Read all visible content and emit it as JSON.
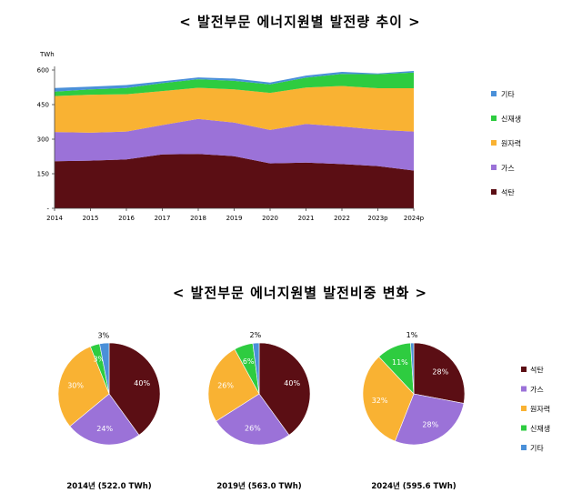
{
  "area_title": "< 발전부문 에너지원별 발전량 추이 >",
  "pie_title": "< 발전부문 에너지원별 발전비중 변화 >",
  "chart_data": [
    {
      "type": "area",
      "stacked": true,
      "title": "< 발전부문 에너지원별 발전량 추이 >",
      "unit": "TWh",
      "x": [
        "2014",
        "2015",
        "2016",
        "2017",
        "2018",
        "2019",
        "2020",
        "2021",
        "2022",
        "2023p",
        "2024p"
      ],
      "yticks": [
        "-",
        "150",
        "300",
        "450",
        "600"
      ],
      "ylim": [
        0,
        600
      ],
      "series": [
        {
          "name": "석탄",
          "color": "#5B0E14",
          "values": [
            204,
            207,
            212,
            234,
            236,
            226,
            195,
            198,
            192,
            183,
            164
          ]
        },
        {
          "name": "가스",
          "color": "#9B72D8",
          "values": [
            127,
            121,
            121,
            127,
            152,
            146,
            145,
            168,
            163,
            158,
            169
          ]
        },
        {
          "name": "원자력",
          "color": "#F9B233",
          "values": [
            156,
            165,
            162,
            148,
            135,
            144,
            161,
            158,
            176,
            180,
            188
          ]
        },
        {
          "name": "신재생",
          "color": "#2ECC40",
          "values": [
            19,
            23,
            27,
            34,
            37,
            37,
            37,
            43,
            52,
            61,
            68
          ]
        },
        {
          "name": "기타",
          "color": "#4A90D9",
          "values": [
            16,
            12,
            13,
            8,
            8,
            10,
            8,
            9,
            9,
            3,
            7
          ]
        }
      ],
      "legend_order": [
        "기타",
        "신재생",
        "원자력",
        "가스",
        "석탄"
      ],
      "legend_position": "right",
      "grid": false
    },
    {
      "type": "pie",
      "title": "< 발전부문 에너지원별 발전비중 변화 >",
      "categories": [
        "석탄",
        "가스",
        "원자력",
        "신재생",
        "기타"
      ],
      "colors": [
        "#5B0E14",
        "#9B72D8",
        "#F9B233",
        "#2ECC40",
        "#4A90D9"
      ],
      "label_colors": [
        "#ffffff",
        "#ffffff",
        "#ffffff",
        "#ffffff",
        "#000000"
      ],
      "legend_position": "right",
      "pies": [
        {
          "caption": "2014년 (522.0 TWh)",
          "values": [
            40,
            24,
            30,
            3,
            3
          ],
          "labels": [
            "40%",
            "24%",
            "30%",
            "3%",
            "3%"
          ]
        },
        {
          "caption": "2019년 (563.0 TWh)",
          "values": [
            40,
            26,
            26,
            6,
            2
          ],
          "labels": [
            "40%",
            "26%",
            "26%",
            "6%",
            "2%"
          ]
        },
        {
          "caption": "2024년 (595.6 TWh)",
          "values": [
            28,
            28,
            32,
            11,
            1
          ],
          "labels": [
            "28%",
            "28%",
            "32%",
            "11%",
            "1%"
          ]
        }
      ]
    }
  ]
}
